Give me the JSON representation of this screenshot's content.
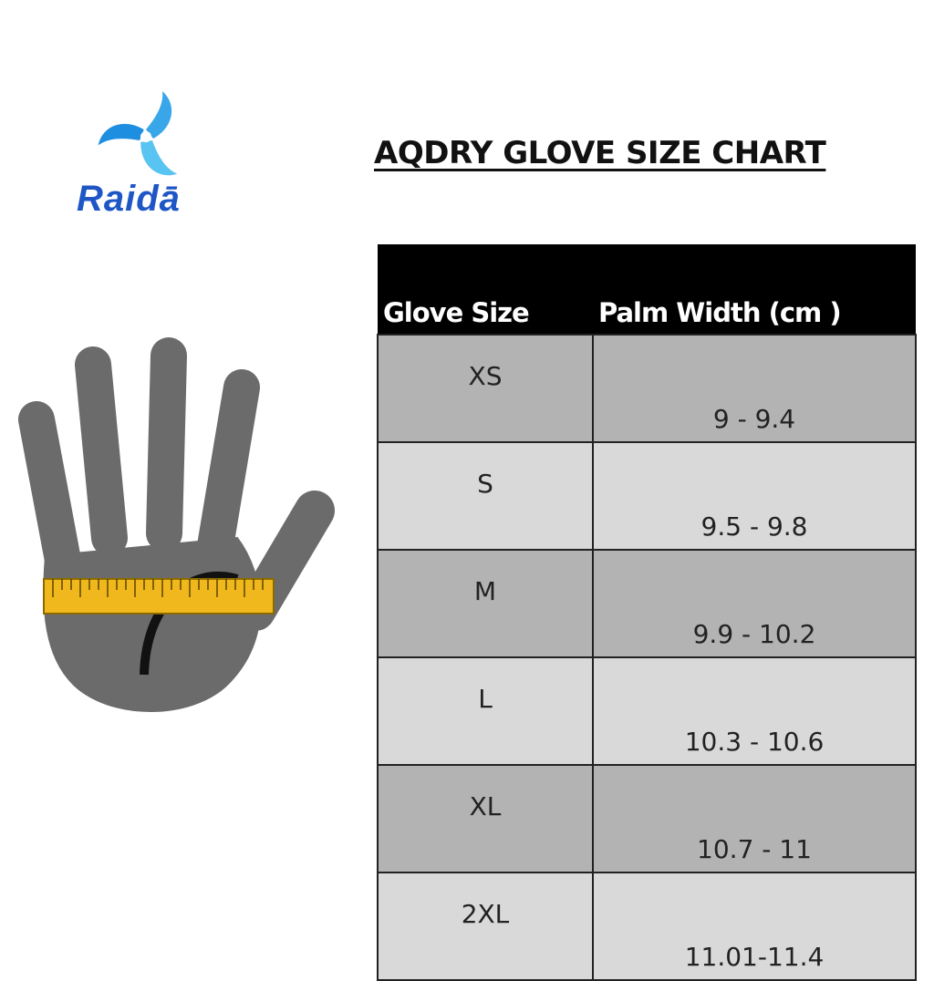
{
  "brand": {
    "name": "Raidā",
    "logo_color": "#29a8e8",
    "text_color": "#1f56c6"
  },
  "title": "AQDRY GLOVE SIZE CHART",
  "table": {
    "headers": [
      "Glove Size",
      "Palm Width (cm )"
    ],
    "rows": [
      {
        "size": "XS",
        "palm_width": "9 - 9.4"
      },
      {
        "size": "S",
        "palm_width": "9.5 - 9.8"
      },
      {
        "size": "M",
        "palm_width": "9.9 - 10.2"
      },
      {
        "size": "L",
        "palm_width": "10.3 - 10.6"
      },
      {
        "size": "XL",
        "palm_width": "10.7 - 11"
      },
      {
        "size": "2XL",
        "palm_width": "11.01-11.4"
      }
    ]
  },
  "illustration": {
    "hand_color": "#6b6b6b",
    "ruler_color": "#f0b81c"
  }
}
